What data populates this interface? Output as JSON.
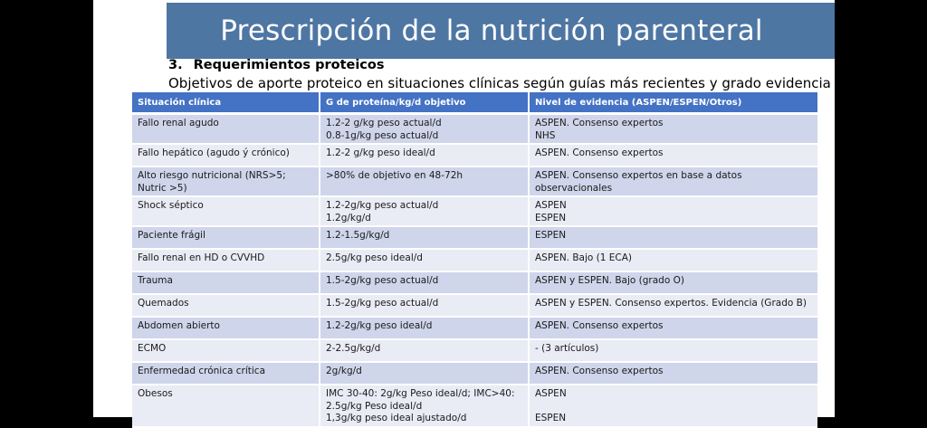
{
  "slide": {
    "title": "Prescripción de la nutrición parenteral",
    "section_number": "3.",
    "section_title": "Requerimientos proteicos",
    "subtitle": "Objetivos de aporte proteico en situaciones clínicas según guías más recientes y grado evidencia"
  },
  "table": {
    "headers": [
      "Situación clínica",
      "G de proteína/kg/d objetivo",
      "Nivel de evidencia (ASPEN/ESPEN/Otros)"
    ],
    "rows": [
      {
        "situation": "Fallo renal agudo",
        "protein": [
          "1.2-2 g/kg peso actual/d",
          "0.8-1g/kg peso actual/d"
        ],
        "evidence": [
          "ASPEN. Consenso expertos",
          "NHS"
        ]
      },
      {
        "situation": "Fallo hepático (agudo ý crónico)",
        "protein": [
          "1.2-2 g/kg peso ideal/d"
        ],
        "evidence": [
          "ASPEN. Consenso expertos"
        ]
      },
      {
        "situation": "Alto riesgo nutricional (NRS>5; Nutric >5)",
        "protein": [
          ">80% de objetivo en 48-72h"
        ],
        "evidence": [
          "ASPEN. Consenso expertos en base a datos observacionales"
        ]
      },
      {
        "situation": "Shock séptico",
        "protein": [
          "1.2-2g/kg peso actual/d",
          "1.2g/kg/d"
        ],
        "evidence": [
          "ASPEN",
          "ESPEN"
        ]
      },
      {
        "situation": "Paciente frágil",
        "protein": [
          "1.2-1.5g/kg/d"
        ],
        "evidence": [
          "ESPEN"
        ]
      },
      {
        "situation": "Fallo renal en HD o CVVHD",
        "protein": [
          "2.5g/kg peso ideal/d"
        ],
        "evidence": [
          "ASPEN. Bajo (1 ECA)"
        ]
      },
      {
        "situation": "Trauma",
        "protein": [
          "1.5-2g/kg peso actual/d"
        ],
        "evidence": [
          "ASPEN y ESPEN. Bajo (grado O)"
        ]
      },
      {
        "situation": "Quemados",
        "protein": [
          "1.5-2g/kg peso actual/d"
        ],
        "evidence": [
          "ASPEN y ESPEN. Consenso expertos. Evidencia (Grado B)"
        ]
      },
      {
        "situation": "Abdomen abierto",
        "protein": [
          "1.2-2g/kg peso ideal/d"
        ],
        "evidence": [
          "ASPEN. Consenso expertos"
        ]
      },
      {
        "situation": "ECMO",
        "protein": [
          "2-2.5g/kg/d"
        ],
        "evidence": [
          "- (3 artículos)"
        ]
      },
      {
        "situation": "Enfermedad crónica crítica",
        "protein": [
          "2g/kg/d"
        ],
        "evidence": [
          "ASPEN. Consenso expertos"
        ]
      },
      {
        "situation": "Obesos",
        "protein": [
          "IMC 30-40: 2g/kg Peso ideal/d; IMC>40: 2.5g/kg Peso ideal/d",
          "1,3g/kg peso ideal ajustado/d"
        ],
        "evidence": [
          "ASPEN",
          "",
          "ESPEN"
        ]
      }
    ]
  },
  "colors": {
    "title_bar": "#4e76a3",
    "header_bg": "#4472c4",
    "row_odd": "#cfd5ea",
    "row_even": "#e9ebf5",
    "backdrop": "#000000"
  }
}
